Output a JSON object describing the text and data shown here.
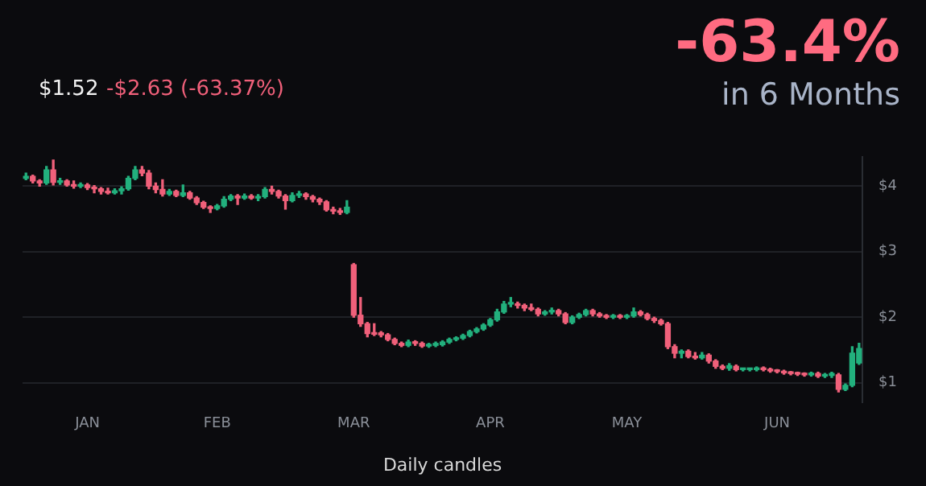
{
  "chart_data": {
    "type": "candlestick",
    "xlabel": "Daily candles",
    "annotations": [
      "$1.52",
      "-$2.63 (-63.37%)",
      "-63.4%",
      "in 6 Months"
    ],
    "categories": [
      null,
      null,
      null,
      null,
      null,
      null,
      null,
      null,
      null,
      "JAN",
      null,
      null,
      null,
      null,
      null,
      null,
      null,
      null,
      null,
      null,
      null,
      null,
      null,
      null,
      null,
      null,
      null,
      null,
      "FEB",
      null,
      null,
      null,
      null,
      null,
      null,
      null,
      null,
      null,
      null,
      null,
      null,
      null,
      null,
      null,
      null,
      null,
      null,
      null,
      "MAR",
      null,
      null,
      null,
      null,
      null,
      null,
      null,
      null,
      null,
      null,
      null,
      null,
      null,
      null,
      null,
      null,
      null,
      null,
      null,
      "APR",
      null,
      null,
      null,
      null,
      null,
      null,
      null,
      null,
      null,
      null,
      null,
      null,
      null,
      null,
      null,
      null,
      null,
      null,
      null,
      "MAY",
      null,
      null,
      null,
      null,
      null,
      null,
      null,
      null,
      null,
      null,
      null,
      null,
      null,
      null,
      null,
      null,
      null,
      null,
      null,
      null,
      null,
      "JUN",
      null,
      null,
      null,
      null,
      null,
      null,
      null,
      null,
      null,
      null,
      null,
      null
    ],
    "ohlc": [
      [
        4.12,
        4.2,
        4.1,
        4.15
      ],
      [
        4.15,
        4.17,
        4.05,
        4.08
      ],
      [
        4.08,
        4.1,
        4.0,
        4.05
      ],
      [
        4.05,
        4.3,
        4.03,
        4.25
      ],
      [
        4.25,
        4.4,
        4.02,
        4.06
      ],
      [
        4.06,
        4.12,
        4.03,
        4.08
      ],
      [
        4.08,
        4.1,
        4.0,
        4.02
      ],
      [
        4.02,
        4.08,
        3.97,
        4.0
      ],
      [
        4.0,
        4.05,
        3.98,
        4.02
      ],
      [
        4.02,
        4.04,
        3.95,
        3.98
      ],
      [
        3.98,
        4.01,
        3.9,
        3.96
      ],
      [
        3.96,
        3.98,
        3.88,
        3.92
      ],
      [
        3.92,
        3.97,
        3.88,
        3.9
      ],
      [
        3.9,
        3.96,
        3.88,
        3.93
      ],
      [
        3.93,
        3.99,
        3.88,
        3.96
      ],
      [
        3.96,
        4.15,
        3.94,
        4.12
      ],
      [
        4.12,
        4.3,
        4.1,
        4.25
      ],
      [
        4.25,
        4.3,
        4.16,
        4.2
      ],
      [
        4.2,
        4.24,
        3.96,
        4.0
      ],
      [
        4.0,
        4.05,
        3.9,
        3.95
      ],
      [
        3.95,
        4.1,
        3.85,
        3.88
      ],
      [
        3.88,
        3.95,
        3.86,
        3.92
      ],
      [
        3.92,
        3.94,
        3.84,
        3.86
      ],
      [
        3.86,
        4.02,
        3.84,
        3.9
      ],
      [
        3.9,
        3.92,
        3.8,
        3.82
      ],
      [
        3.82,
        3.84,
        3.72,
        3.75
      ],
      [
        3.75,
        3.77,
        3.66,
        3.68
      ],
      [
        3.68,
        3.7,
        3.6,
        3.66
      ],
      [
        3.66,
        3.72,
        3.64,
        3.7
      ],
      [
        3.7,
        3.84,
        3.68,
        3.8
      ],
      [
        3.8,
        3.87,
        3.78,
        3.85
      ],
      [
        3.85,
        3.87,
        3.72,
        3.82
      ],
      [
        3.82,
        3.88,
        3.8,
        3.85
      ],
      [
        3.85,
        3.87,
        3.8,
        3.82
      ],
      [
        3.82,
        3.87,
        3.78,
        3.84
      ],
      [
        3.84,
        3.98,
        3.82,
        3.95
      ],
      [
        3.95,
        4.0,
        3.88,
        3.92
      ],
      [
        3.92,
        3.94,
        3.82,
        3.85
      ],
      [
        3.85,
        3.87,
        3.65,
        3.78
      ],
      [
        3.78,
        3.9,
        3.76,
        3.86
      ],
      [
        3.86,
        3.92,
        3.83,
        3.88
      ],
      [
        3.88,
        3.9,
        3.8,
        3.84
      ],
      [
        3.84,
        3.86,
        3.76,
        3.8
      ],
      [
        3.8,
        3.82,
        3.72,
        3.76
      ],
      [
        3.76,
        3.78,
        3.62,
        3.64
      ],
      [
        3.64,
        3.68,
        3.58,
        3.62
      ],
      [
        3.62,
        3.66,
        3.57,
        3.6
      ],
      [
        3.6,
        3.78,
        3.58,
        3.68
      ],
      [
        2.8,
        2.82,
        2.0,
        2.03
      ],
      [
        2.03,
        2.3,
        1.86,
        1.9
      ],
      [
        1.9,
        1.92,
        1.7,
        1.75
      ],
      [
        1.75,
        1.9,
        1.72,
        1.74
      ],
      [
        1.76,
        1.78,
        1.7,
        1.73
      ],
      [
        1.73,
        1.75,
        1.64,
        1.66
      ],
      [
        1.66,
        1.68,
        1.58,
        1.6
      ],
      [
        1.6,
        1.62,
        1.55,
        1.57
      ],
      [
        1.57,
        1.65,
        1.55,
        1.62
      ],
      [
        1.62,
        1.64,
        1.57,
        1.6
      ],
      [
        1.6,
        1.62,
        1.54,
        1.56
      ],
      [
        1.56,
        1.6,
        1.54,
        1.58
      ],
      [
        1.57,
        1.62,
        1.55,
        1.6
      ],
      [
        1.58,
        1.64,
        1.56,
        1.62
      ],
      [
        1.62,
        1.68,
        1.6,
        1.66
      ],
      [
        1.66,
        1.7,
        1.64,
        1.68
      ],
      [
        1.68,
        1.74,
        1.66,
        1.72
      ],
      [
        1.72,
        1.8,
        1.7,
        1.78
      ],
      [
        1.78,
        1.84,
        1.76,
        1.82
      ],
      [
        1.82,
        1.9,
        1.8,
        1.88
      ],
      [
        1.88,
        1.98,
        1.86,
        1.96
      ],
      [
        1.96,
        2.12,
        1.94,
        2.08
      ],
      [
        2.08,
        2.24,
        2.06,
        2.2
      ],
      [
        2.2,
        2.3,
        2.16,
        2.2
      ],
      [
        2.2,
        2.23,
        2.14,
        2.18
      ],
      [
        2.18,
        2.2,
        2.1,
        2.14
      ],
      [
        2.14,
        2.2,
        2.1,
        2.12
      ],
      [
        2.12,
        2.14,
        2.02,
        2.05
      ],
      [
        2.05,
        2.1,
        2.03,
        2.08
      ],
      [
        2.08,
        2.14,
        2.05,
        2.1
      ],
      [
        2.1,
        2.12,
        2.02,
        2.05
      ],
      [
        2.05,
        2.07,
        1.9,
        1.92
      ],
      [
        1.92,
        2.02,
        1.9,
        2.0
      ],
      [
        2.0,
        2.06,
        1.98,
        2.04
      ],
      [
        2.04,
        2.12,
        2.02,
        2.1
      ],
      [
        2.1,
        2.12,
        2.02,
        2.05
      ],
      [
        2.05,
        2.07,
        2.0,
        2.02
      ],
      [
        2.02,
        2.04,
        1.98,
        2.0
      ],
      [
        2.0,
        2.04,
        1.98,
        2.02
      ],
      [
        2.02,
        2.04,
        1.98,
        2.0
      ],
      [
        2.0,
        2.04,
        1.98,
        2.02
      ],
      [
        2.02,
        2.14,
        2.0,
        2.08
      ],
      [
        2.08,
        2.1,
        2.02,
        2.04
      ],
      [
        2.04,
        2.06,
        1.96,
        1.98
      ],
      [
        1.98,
        2.0,
        1.92,
        1.95
      ],
      [
        1.95,
        1.97,
        1.88,
        1.9
      ],
      [
        1.9,
        1.92,
        1.52,
        1.55
      ],
      [
        1.55,
        1.58,
        1.38,
        1.45
      ],
      [
        1.45,
        1.5,
        1.38,
        1.48
      ],
      [
        1.48,
        1.5,
        1.38,
        1.4
      ],
      [
        1.4,
        1.46,
        1.36,
        1.38
      ],
      [
        1.38,
        1.46,
        1.36,
        1.42
      ],
      [
        1.42,
        1.44,
        1.3,
        1.33
      ],
      [
        1.33,
        1.35,
        1.22,
        1.25
      ],
      [
        1.25,
        1.27,
        1.2,
        1.22
      ],
      [
        1.22,
        1.29,
        1.19,
        1.26
      ],
      [
        1.25,
        1.27,
        1.18,
        1.2
      ],
      [
        1.2,
        1.22,
        1.18,
        1.2
      ],
      [
        1.2,
        1.22,
        1.18,
        1.2
      ],
      [
        1.2,
        1.24,
        1.18,
        1.22
      ],
      [
        1.22,
        1.24,
        1.18,
        1.2
      ],
      [
        1.2,
        1.22,
        1.16,
        1.18
      ],
      [
        1.18,
        1.2,
        1.15,
        1.17
      ],
      [
        1.17,
        1.19,
        1.13,
        1.15
      ],
      [
        1.15,
        1.17,
        1.12,
        1.14
      ],
      [
        1.14,
        1.16,
        1.11,
        1.13
      ],
      [
        1.13,
        1.15,
        1.1,
        1.12
      ],
      [
        1.12,
        1.16,
        1.1,
        1.14
      ],
      [
        1.14,
        1.16,
        1.08,
        1.1
      ],
      [
        1.1,
        1.14,
        1.08,
        1.12
      ],
      [
        1.11,
        1.16,
        1.08,
        1.14
      ],
      [
        1.12,
        1.14,
        0.86,
        0.9
      ],
      [
        0.9,
        0.98,
        0.88,
        0.96
      ],
      [
        0.96,
        1.55,
        0.94,
        1.45
      ],
      [
        1.3,
        1.6,
        1.28,
        1.52
      ]
    ],
    "ylim": [
      0.7,
      4.45
    ],
    "yticks": [
      {
        "value": 1,
        "label": "$1"
      },
      {
        "value": 2,
        "label": "$2"
      },
      {
        "value": 3,
        "label": "$3"
      },
      {
        "value": 4,
        "label": "$4"
      }
    ],
    "grid": "y",
    "legend": false
  }
}
